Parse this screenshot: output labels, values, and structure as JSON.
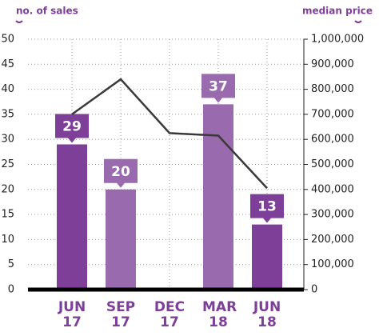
{
  "chart_data": {
    "type": "bar",
    "y_label": "no. of sales",
    "y2_label": "median price",
    "categories": [
      "JUN 17",
      "SEP 17",
      "DEC 17",
      "MAR 18",
      "JUN 18"
    ],
    "series": [
      {
        "name": "no. of sales",
        "type": "bar",
        "colors": [
          "#7e3f98",
          "#9a6aae",
          "#9a6aae",
          "#9a6aae",
          "#7e3f98"
        ],
        "values": [
          29,
          20,
          null,
          37,
          13
        ]
      },
      {
        "name": "median price",
        "type": "line",
        "axis": "y2",
        "color": "#3a3a3a",
        "values": [
          700000,
          840000,
          625000,
          615000,
          405000
        ]
      }
    ],
    "ylim": [
      0,
      50
    ],
    "yticks": [
      0,
      5,
      10,
      15,
      20,
      25,
      30,
      35,
      40,
      45,
      50
    ],
    "y2lim": [
      0,
      1000000
    ],
    "y2ticks": [
      0,
      {
        "value": 100000,
        "label": "100,000"
      },
      {
        "value": 200000,
        "label": "200,000"
      },
      {
        "value": 300000,
        "label": "300,000"
      },
      {
        "value": 400000,
        "label": "400,000"
      },
      {
        "value": 500000,
        "label": "500,000"
      },
      {
        "value": 600000,
        "label": "600,000"
      },
      {
        "value": 700000,
        "label": "700,000"
      },
      {
        "value": 800000,
        "label": "800,000"
      },
      {
        "value": 900000,
        "label": "900,000"
      },
      {
        "value": 1000000,
        "label": "1,000,000"
      }
    ],
    "grid": true
  }
}
